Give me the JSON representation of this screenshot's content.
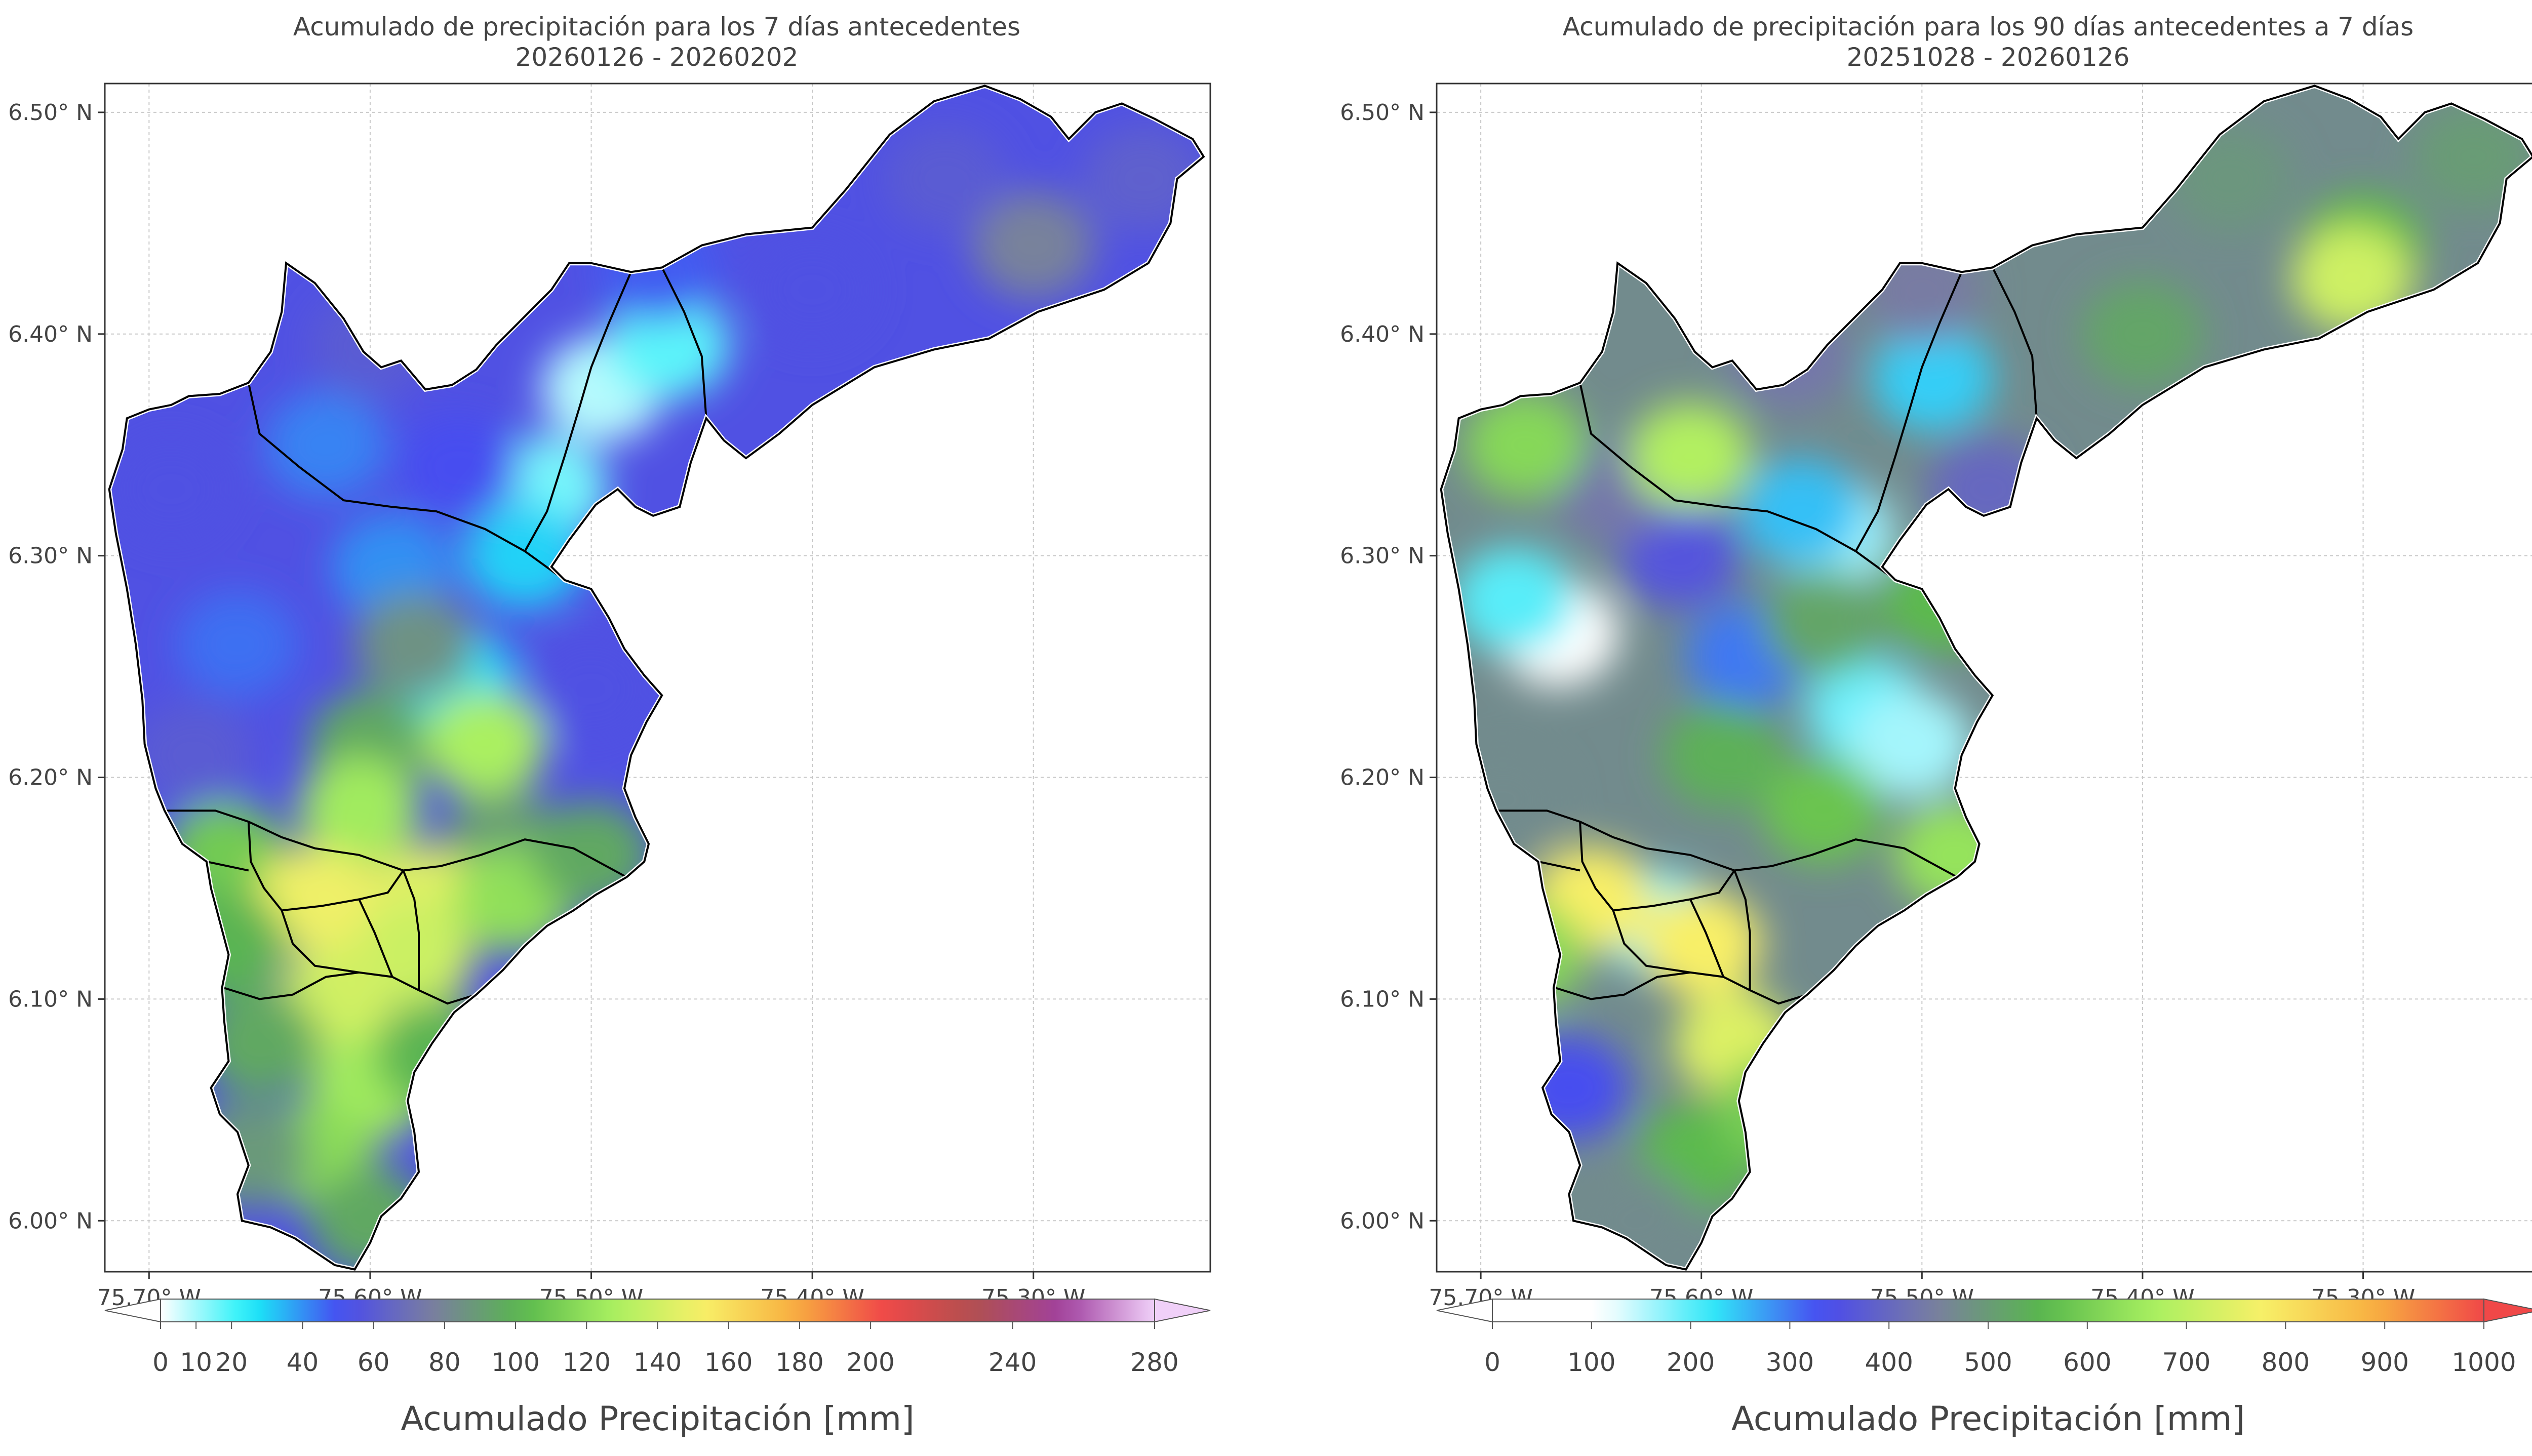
{
  "chart_data": [
    {
      "type": "heatmap",
      "title": "Acumulado de precipitación para los 7 días antecedentes",
      "subtitle": "20260126 - 20260202",
      "x_ticks": [
        "75.70° W",
        "75.60° W",
        "75.50° W",
        "75.40° W",
        "75.30° W"
      ],
      "x_tick_values": [
        -75.7,
        -75.6,
        -75.5,
        -75.4,
        -75.3
      ],
      "y_ticks": [
        "6.50° N",
        "6.40° N",
        "6.30° N",
        "6.20° N",
        "6.10° N",
        "6.00° N"
      ],
      "y_tick_values": [
        6.5,
        6.4,
        6.3,
        6.2,
        6.1,
        6.0
      ],
      "xlim": [
        -75.72,
        -75.22
      ],
      "ylim": [
        5.977,
        6.513
      ],
      "grid": true,
      "colorbar": {
        "label": "Acumulado Precipitación [mm]",
        "ticks": [
          "0",
          "10",
          "20",
          "40",
          "60",
          "80",
          "100",
          "120",
          "140",
          "160",
          "180",
          "200",
          "240",
          "280"
        ],
        "tick_values": [
          0,
          10,
          20,
          40,
          60,
          80,
          100,
          120,
          140,
          160,
          180,
          200,
          240,
          280
        ],
        "range": [
          0,
          280
        ],
        "colors": [
          "#ffffff",
          "#18f0f8",
          "#4848f0",
          "#7a7ea0",
          "#58b84c",
          "#a8f060",
          "#f8f068",
          "#f8b040",
          "#f04848",
          "#b05050",
          "#a040a0",
          "#f0d0f8"
        ]
      },
      "points": [
        {
          "lon": -75.495,
          "lat": 6.375,
          "value": 8
        },
        {
          "lon": -75.52,
          "lat": 6.33,
          "value": 15
        },
        {
          "lon": -75.465,
          "lat": 6.395,
          "value": 18
        },
        {
          "lon": -75.53,
          "lat": 6.3,
          "value": 30
        },
        {
          "lon": -75.562,
          "lat": 6.245,
          "value": 28
        },
        {
          "lon": -75.59,
          "lat": 6.295,
          "value": 40
        },
        {
          "lon": -75.66,
          "lat": 6.26,
          "value": 45
        },
        {
          "lon": -75.62,
          "lat": 6.35,
          "value": 42
        },
        {
          "lon": -75.56,
          "lat": 6.34,
          "value": 50
        },
        {
          "lon": -75.4,
          "lat": 6.42,
          "value": 55
        },
        {
          "lon": -75.47,
          "lat": 6.43,
          "value": 48
        },
        {
          "lon": -75.69,
          "lat": 6.33,
          "value": 55
        },
        {
          "lon": -75.6,
          "lat": 6.395,
          "value": 60
        },
        {
          "lon": -75.3,
          "lat": 6.44,
          "value": 78
        },
        {
          "lon": -75.34,
          "lat": 6.47,
          "value": 60
        },
        {
          "lon": -75.25,
          "lat": 6.47,
          "value": 62
        },
        {
          "lon": -75.58,
          "lat": 6.26,
          "value": 85
        },
        {
          "lon": -75.5,
          "lat": 6.24,
          "value": 55
        },
        {
          "lon": -75.6,
          "lat": 6.215,
          "value": 95
        },
        {
          "lon": -75.548,
          "lat": 6.215,
          "value": 128
        },
        {
          "lon": -75.68,
          "lat": 6.21,
          "value": 60
        },
        {
          "lon": -75.605,
          "lat": 6.185,
          "value": 125
        },
        {
          "lon": -75.54,
          "lat": 6.17,
          "value": 90
        },
        {
          "lon": -75.665,
          "lat": 6.165,
          "value": 110
        },
        {
          "lon": -75.6,
          "lat": 6.137,
          "value": 175
        },
        {
          "lon": -75.575,
          "lat": 6.145,
          "value": 145
        },
        {
          "lon": -75.625,
          "lat": 6.145,
          "value": 150
        },
        {
          "lon": -75.58,
          "lat": 6.12,
          "value": 138
        },
        {
          "lon": -75.535,
          "lat": 6.145,
          "value": 120
        },
        {
          "lon": -75.5,
          "lat": 6.165,
          "value": 95
        },
        {
          "lon": -75.665,
          "lat": 6.125,
          "value": 100
        },
        {
          "lon": -75.615,
          "lat": 6.1,
          "value": 140
        },
        {
          "lon": -75.6,
          "lat": 6.06,
          "value": 125
        },
        {
          "lon": -75.625,
          "lat": 6.03,
          "value": 118
        },
        {
          "lon": -75.65,
          "lat": 6.08,
          "value": 95
        },
        {
          "lon": -75.655,
          "lat": 6.03,
          "value": 88
        },
        {
          "lon": -75.6,
          "lat": 6.0,
          "value": 95
        },
        {
          "lon": -75.57,
          "lat": 6.075,
          "value": 100
        }
      ]
    },
    {
      "type": "heatmap",
      "title": "Acumulado de precipitación para los 90 días antecedentes a 7 días",
      "subtitle": "20251028 - 20260126",
      "x_ticks": [
        "75.70° W",
        "75.60° W",
        "75.50° W",
        "75.40° W",
        "75.30° W"
      ],
      "x_tick_values": [
        -75.7,
        -75.6,
        -75.5,
        -75.4,
        -75.3
      ],
      "y_ticks": [
        "6.50° N",
        "6.40° N",
        "6.30° N",
        "6.20° N",
        "6.10° N",
        "6.00° N"
      ],
      "y_tick_values": [
        6.5,
        6.4,
        6.3,
        6.2,
        6.1,
        6.0
      ],
      "xlim": [
        -75.72,
        -75.22
      ],
      "ylim": [
        5.977,
        6.513
      ],
      "grid": true,
      "colorbar": {
        "label": "Acumulado Precipitación [mm]",
        "ticks": [
          "0",
          "100",
          "200",
          "300",
          "400",
          "500",
          "600",
          "700",
          "800",
          "900",
          "1000"
        ],
        "tick_values": [
          0,
          100,
          200,
          300,
          400,
          500,
          600,
          700,
          800,
          900,
          1000
        ],
        "range": [
          0,
          1000
        ],
        "colors": [
          "#ffffff",
          "#ffffff",
          "#30e8f8",
          "#4848f0",
          "#7a7ea0",
          "#58b84c",
          "#a8f060",
          "#f8f068",
          "#f8b040",
          "#f04848"
        ]
      },
      "points": [
        {
          "lon": -75.665,
          "lat": 6.265,
          "value": 110
        },
        {
          "lon": -75.685,
          "lat": 6.28,
          "value": 200
        },
        {
          "lon": -75.54,
          "lat": 6.31,
          "value": 160
        },
        {
          "lon": -75.555,
          "lat": 6.32,
          "value": 250
        },
        {
          "lon": -75.525,
          "lat": 6.23,
          "value": 190
        },
        {
          "lon": -75.505,
          "lat": 6.215,
          "value": 160
        },
        {
          "lon": -75.495,
          "lat": 6.38,
          "value": 240
        },
        {
          "lon": -75.62,
          "lat": 6.135,
          "value": 180
        },
        {
          "lon": -75.58,
          "lat": 6.255,
          "value": 300
        },
        {
          "lon": -75.61,
          "lat": 6.3,
          "value": 360
        },
        {
          "lon": -75.66,
          "lat": 6.06,
          "value": 330
        },
        {
          "lon": -75.64,
          "lat": 6.33,
          "value": 430
        },
        {
          "lon": -75.5,
          "lat": 6.42,
          "value": 440
        },
        {
          "lon": -75.47,
          "lat": 6.33,
          "value": 400
        },
        {
          "lon": -75.56,
          "lat": 6.39,
          "value": 430
        },
        {
          "lon": -75.69,
          "lat": 6.19,
          "value": 470
        },
        {
          "lon": -75.36,
          "lat": 6.47,
          "value": 490
        },
        {
          "lon": -75.3,
          "lat": 6.44,
          "value": 560
        },
        {
          "lon": -75.305,
          "lat": 6.425,
          "value": 720
        },
        {
          "lon": -75.4,
          "lat": 6.4,
          "value": 520
        },
        {
          "lon": -75.25,
          "lat": 6.48,
          "value": 500
        },
        {
          "lon": -75.605,
          "lat": 6.345,
          "value": 680
        },
        {
          "lon": -75.68,
          "lat": 6.35,
          "value": 620
        },
        {
          "lon": -75.545,
          "lat": 6.27,
          "value": 520
        },
        {
          "lon": -75.49,
          "lat": 6.28,
          "value": 560
        },
        {
          "lon": -75.59,
          "lat": 6.21,
          "value": 540
        },
        {
          "lon": -75.545,
          "lat": 6.185,
          "value": 580
        },
        {
          "lon": -75.485,
          "lat": 6.165,
          "value": 640
        },
        {
          "lon": -75.65,
          "lat": 6.145,
          "value": 780
        },
        {
          "lon": -75.68,
          "lat": 6.12,
          "value": 620
        },
        {
          "lon": -75.6,
          "lat": 6.125,
          "value": 780
        },
        {
          "lon": -75.585,
          "lat": 6.08,
          "value": 740
        },
        {
          "lon": -75.6,
          "lat": 6.03,
          "value": 560
        },
        {
          "lon": -75.63,
          "lat": 6.0,
          "value": 470
        },
        {
          "lon": -75.565,
          "lat": 6.05,
          "value": 600
        }
      ]
    }
  ]
}
